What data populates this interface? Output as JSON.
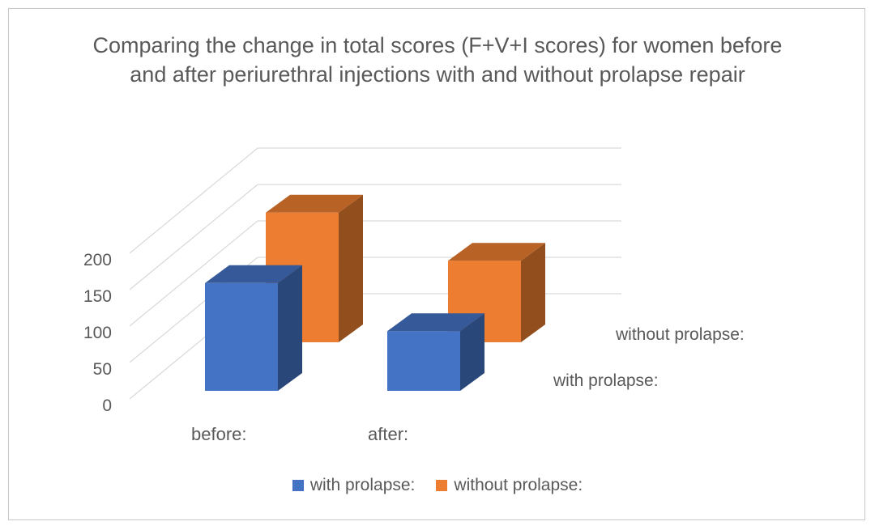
{
  "chart_data": {
    "type": "bar",
    "title": "Comparing the change in total scores (F+V+I scores) for women before and after periurethral injections with and without prolapse repair",
    "categories": [
      "before:",
      "after:"
    ],
    "series": [
      {
        "name": "with prolapse:",
        "values": [
          148,
          82
        ],
        "color": "#4472C4"
      },
      {
        "name": "without prolapse:",
        "values": [
          178,
          112
        ],
        "color": "#ED7D31"
      }
    ],
    "ylim": [
      0,
      200
    ],
    "yticks": [
      "0",
      "50",
      "100",
      "150",
      "200"
    ],
    "grid": true,
    "style": "3d-columns",
    "legend_position": "bottom"
  }
}
